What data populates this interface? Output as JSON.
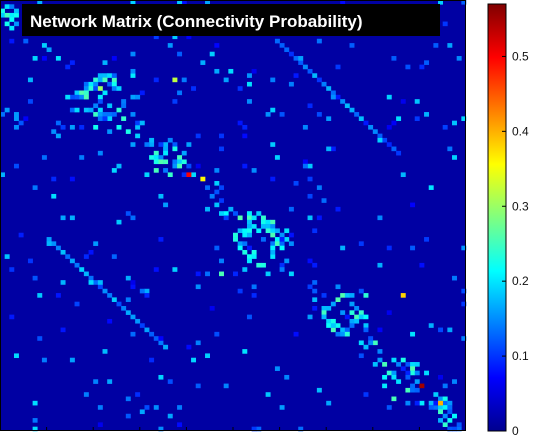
{
  "chart_data": {
    "type": "heatmap",
    "title": "Network Matrix (Connectivity Probability)",
    "xlabel": "",
    "ylabel": "",
    "colormap": "jet",
    "value_range": [
      0,
      0.57
    ],
    "colorbar": {
      "ticks": [
        0,
        0.1,
        0.2,
        0.3,
        0.4,
        0.5
      ],
      "tick_labels": [
        "0",
        "0.1",
        "0.2",
        "0.3",
        "0.4",
        "0.5"
      ],
      "placement": "right"
    },
    "matrix_size": 100,
    "background_value": 0.02,
    "notes_visible": "sparse symmetric-looking matrix with block clusters along main diagonal and two off-diagonal bands"
  },
  "colors": {
    "background": "#00008f",
    "title_box": "#000000",
    "title_text": "#ffffff",
    "frame": "#000000"
  }
}
